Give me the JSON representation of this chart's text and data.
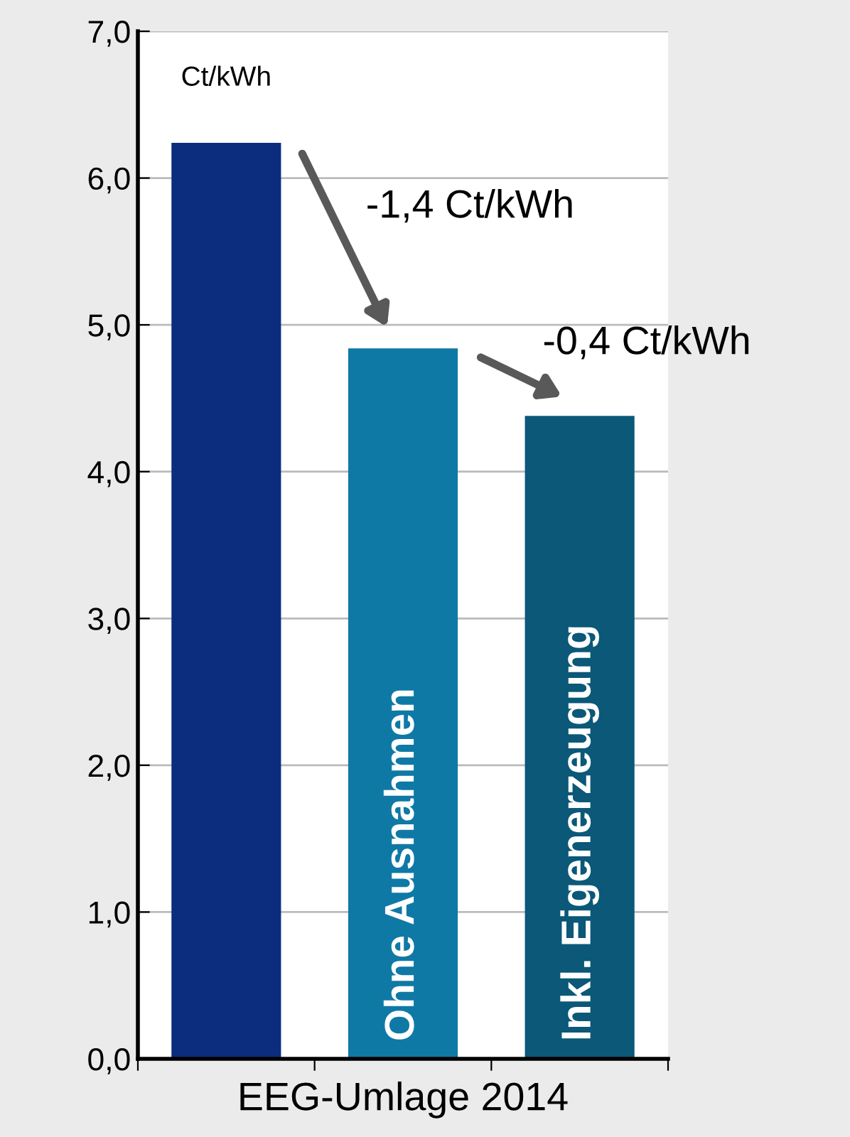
{
  "chart_data": {
    "type": "bar",
    "categories": [
      null,
      "Ohne Ausnahmen",
      "Inkl. Eigenerzeugung"
    ],
    "values": [
      6.24,
      4.84,
      4.38
    ],
    "colors": [
      "#0c2d7e",
      "#0f79a6",
      "#0b5878"
    ],
    "xlabel": "EEG-Umlage 2014",
    "ylim": [
      0,
      7
    ],
    "yticks": [
      {
        "value": 0,
        "label": "0,0"
      },
      {
        "value": 1,
        "label": "1,0"
      },
      {
        "value": 2,
        "label": "2,0"
      },
      {
        "value": 3,
        "label": "3,0"
      },
      {
        "value": 4,
        "label": "4,0"
      },
      {
        "value": 5,
        "label": "5,0"
      },
      {
        "value": 6,
        "label": "6,0"
      },
      {
        "value": 7,
        "label": "7,0"
      }
    ],
    "grid": "y",
    "annotations": [
      "Ct/kWh",
      "-1,4 Ct/kWh",
      "-0,4 Ct/kWh"
    ]
  }
}
